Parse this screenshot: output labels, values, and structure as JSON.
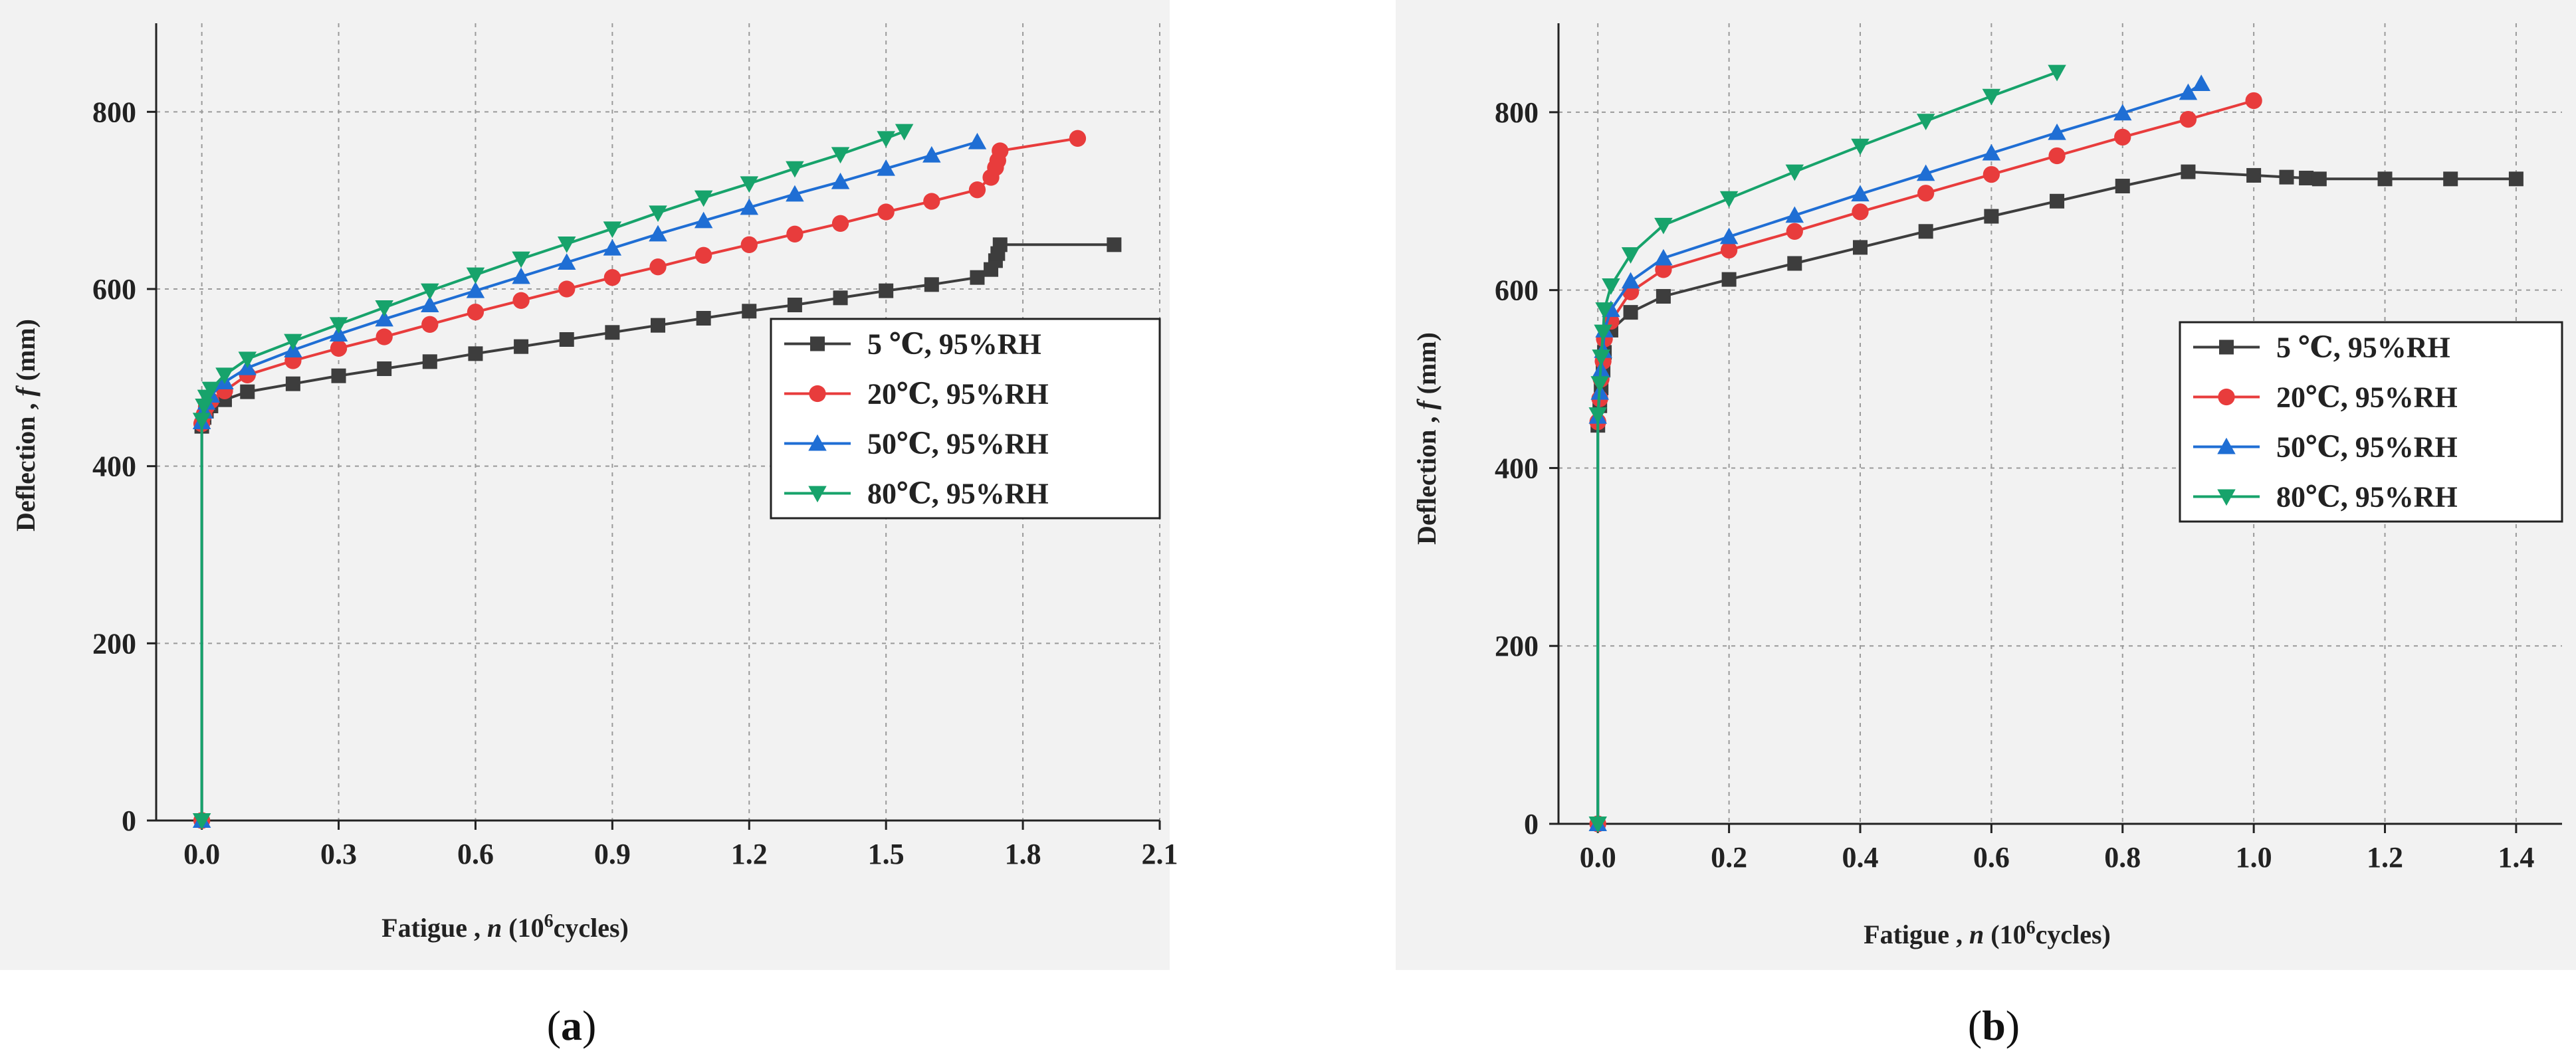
{
  "figure": {
    "panels": [
      {
        "id": "a",
        "caption_letter": "a",
        "xlabel_prefix": "Fatigue , ",
        "xlabel_var": "n",
        "xlabel_unit_open": " (10",
        "xlabel_sup": "6",
        "xlabel_unit_close": "cycles)",
        "ylabel_prefix": "Deflection , ",
        "ylabel_var": "f",
        "ylabel_unit": " (mm)"
      },
      {
        "id": "b",
        "caption_letter": "b",
        "xlabel_prefix": "Fatigue , ",
        "xlabel_var": "n",
        "xlabel_unit_open": " (10",
        "xlabel_sup": "6",
        "xlabel_unit_close": "cycles)",
        "ylabel_prefix": "Deflection , ",
        "ylabel_var": "f",
        "ylabel_unit": " (mm)"
      }
    ]
  },
  "chart_data": [
    {
      "type": "line",
      "title": "(a)",
      "xlabel": "Fatigue , n (10^6 cycles)",
      "ylabel": "Deflection , f (mm)",
      "xlim": [
        -0.1,
        2.1
      ],
      "ylim": [
        0,
        900
      ],
      "xticks": [
        0.0,
        0.3,
        0.6,
        0.9,
        1.2,
        1.5,
        1.8,
        2.1
      ],
      "xtick_labels": [
        "0.0",
        "0.3",
        "0.6",
        "0.9",
        "1.2",
        "1.5",
        "1.8",
        "2.1"
      ],
      "yticks": [
        0,
        200,
        400,
        600,
        800
      ],
      "ytick_labels": [
        "0",
        "200",
        "400",
        "600",
        "800"
      ],
      "grid": true,
      "legend_position": "center-right",
      "series": [
        {
          "name": "5  ℃, 95%RH",
          "color": "#3d3d3d",
          "marker": "square",
          "x": [
            0,
            0,
            0.005,
            0.01,
            0.02,
            0.05,
            0.1,
            0.2,
            0.3,
            0.4,
            0.5,
            0.6,
            0.7,
            0.8,
            0.9,
            1.0,
            1.1,
            1.2,
            1.3,
            1.4,
            1.5,
            1.6,
            1.7,
            1.73,
            1.74,
            1.745,
            1.75,
            2.0
          ],
          "y": [
            0,
            445,
            455,
            462,
            468,
            475,
            484,
            493,
            502,
            510,
            518,
            527,
            535,
            543,
            551,
            559,
            567,
            575,
            582,
            590,
            598,
            605,
            613,
            622,
            632,
            640,
            650,
            650
          ]
        },
        {
          "name": "20℃, 95%RH",
          "color": "#e83c3c",
          "marker": "circle",
          "x": [
            0,
            0,
            0.005,
            0.01,
            0.02,
            0.05,
            0.1,
            0.2,
            0.3,
            0.4,
            0.5,
            0.6,
            0.7,
            0.8,
            0.9,
            1.0,
            1.1,
            1.2,
            1.3,
            1.4,
            1.5,
            1.6,
            1.7,
            1.73,
            1.74,
            1.745,
            1.75,
            1.92
          ],
          "y": [
            0,
            448,
            458,
            467,
            474,
            485,
            503,
            519,
            533,
            546,
            560,
            574,
            587,
            600,
            613,
            625,
            638,
            650,
            662,
            674,
            687,
            699,
            712,
            726,
            737,
            745,
            756,
            770
          ]
        },
        {
          "name": "50℃, 95%RH",
          "color": "#1f6ed4",
          "marker": "triangle-up",
          "x": [
            0,
            0,
            0.005,
            0.01,
            0.02,
            0.05,
            0.1,
            0.2,
            0.3,
            0.4,
            0.5,
            0.6,
            0.7,
            0.8,
            0.9,
            1.0,
            1.1,
            1.2,
            1.3,
            1.4,
            1.5,
            1.6,
            1.7
          ],
          "y": [
            0,
            450,
            462,
            472,
            480,
            495,
            511,
            531,
            549,
            566,
            582,
            598,
            614,
            630,
            646,
            662,
            677,
            692,
            707,
            721,
            736,
            751,
            766
          ]
        },
        {
          "name": "80℃, 95%RH",
          "color": "#17a36b",
          "marker": "triangle-down",
          "x": [
            0,
            0,
            0.005,
            0.01,
            0.02,
            0.05,
            0.1,
            0.2,
            0.3,
            0.4,
            0.5,
            0.6,
            0.7,
            0.8,
            0.9,
            1.0,
            1.1,
            1.2,
            1.3,
            1.4,
            1.5,
            1.54
          ],
          "y": [
            0,
            452,
            468,
            478,
            487,
            503,
            521,
            541,
            560,
            579,
            598,
            616,
            634,
            651,
            668,
            686,
            703,
            719,
            736,
            752,
            770,
            778
          ]
        }
      ]
    },
    {
      "type": "line",
      "title": "(b)",
      "xlabel": "Fatigue , n (10^6 cycles)",
      "ylabel": "Deflection , f (mm)",
      "xlim": [
        -0.06,
        1.47
      ],
      "ylim": [
        0,
        900
      ],
      "xticks": [
        0.0,
        0.2,
        0.4,
        0.6,
        0.8,
        1.0,
        1.2,
        1.4
      ],
      "xtick_labels": [
        "0.0",
        "0.2",
        "0.4",
        "0.6",
        "0.8",
        "1.0",
        "1.2",
        "1.4"
      ],
      "yticks": [
        0,
        200,
        400,
        600,
        800
      ],
      "ytick_labels": [
        "0",
        "200",
        "400",
        "600",
        "800"
      ],
      "grid": true,
      "legend_position": "center-right",
      "series": [
        {
          "name": "5  ℃, 95%RH",
          "color": "#3d3d3d",
          "marker": "square",
          "x": [
            0,
            0,
            0.003,
            0.005,
            0.008,
            0.01,
            0.02,
            0.05,
            0.1,
            0.2,
            0.3,
            0.4,
            0.5,
            0.6,
            0.7,
            0.8,
            0.9,
            1.0,
            1.05,
            1.08,
            1.1,
            1.2,
            1.3,
            1.4
          ],
          "y": [
            0,
            448,
            470,
            490,
            510,
            530,
            555,
            575,
            593,
            612,
            630,
            648,
            666,
            683,
            700,
            717,
            733,
            729,
            727,
            726,
            725,
            725,
            725,
            725
          ]
        },
        {
          "name": "20℃, 95%RH",
          "color": "#e83c3c",
          "marker": "circle",
          "x": [
            0,
            0,
            0.003,
            0.005,
            0.008,
            0.01,
            0.02,
            0.05,
            0.1,
            0.2,
            0.3,
            0.4,
            0.5,
            0.6,
            0.7,
            0.8,
            0.9,
            1.0
          ],
          "y": [
            0,
            452,
            478,
            500,
            520,
            545,
            565,
            598,
            623,
            645,
            666,
            688,
            709,
            730,
            751,
            772,
            792,
            813
          ]
        },
        {
          "name": "50℃, 95%RH",
          "color": "#1f6ed4",
          "marker": "triangle-up",
          "x": [
            0,
            0,
            0.003,
            0.005,
            0.008,
            0.01,
            0.02,
            0.05,
            0.1,
            0.2,
            0.3,
            0.4,
            0.5,
            0.6,
            0.7,
            0.8,
            0.9,
            0.92
          ],
          "y": [
            0,
            458,
            485,
            510,
            532,
            555,
            578,
            610,
            636,
            660,
            684,
            708,
            731,
            754,
            777,
            799,
            822,
            832
          ]
        },
        {
          "name": "80℃, 95%RH",
          "color": "#17a36b",
          "marker": "triangle-down",
          "x": [
            0,
            0,
            0.003,
            0.005,
            0.008,
            0.01,
            0.02,
            0.05,
            0.1,
            0.2,
            0.3,
            0.4,
            0.5,
            0.6,
            0.7
          ],
          "y": [
            0,
            460,
            495,
            525,
            553,
            578,
            605,
            640,
            673,
            703,
            733,
            762,
            790,
            818,
            845
          ]
        }
      ]
    }
  ]
}
